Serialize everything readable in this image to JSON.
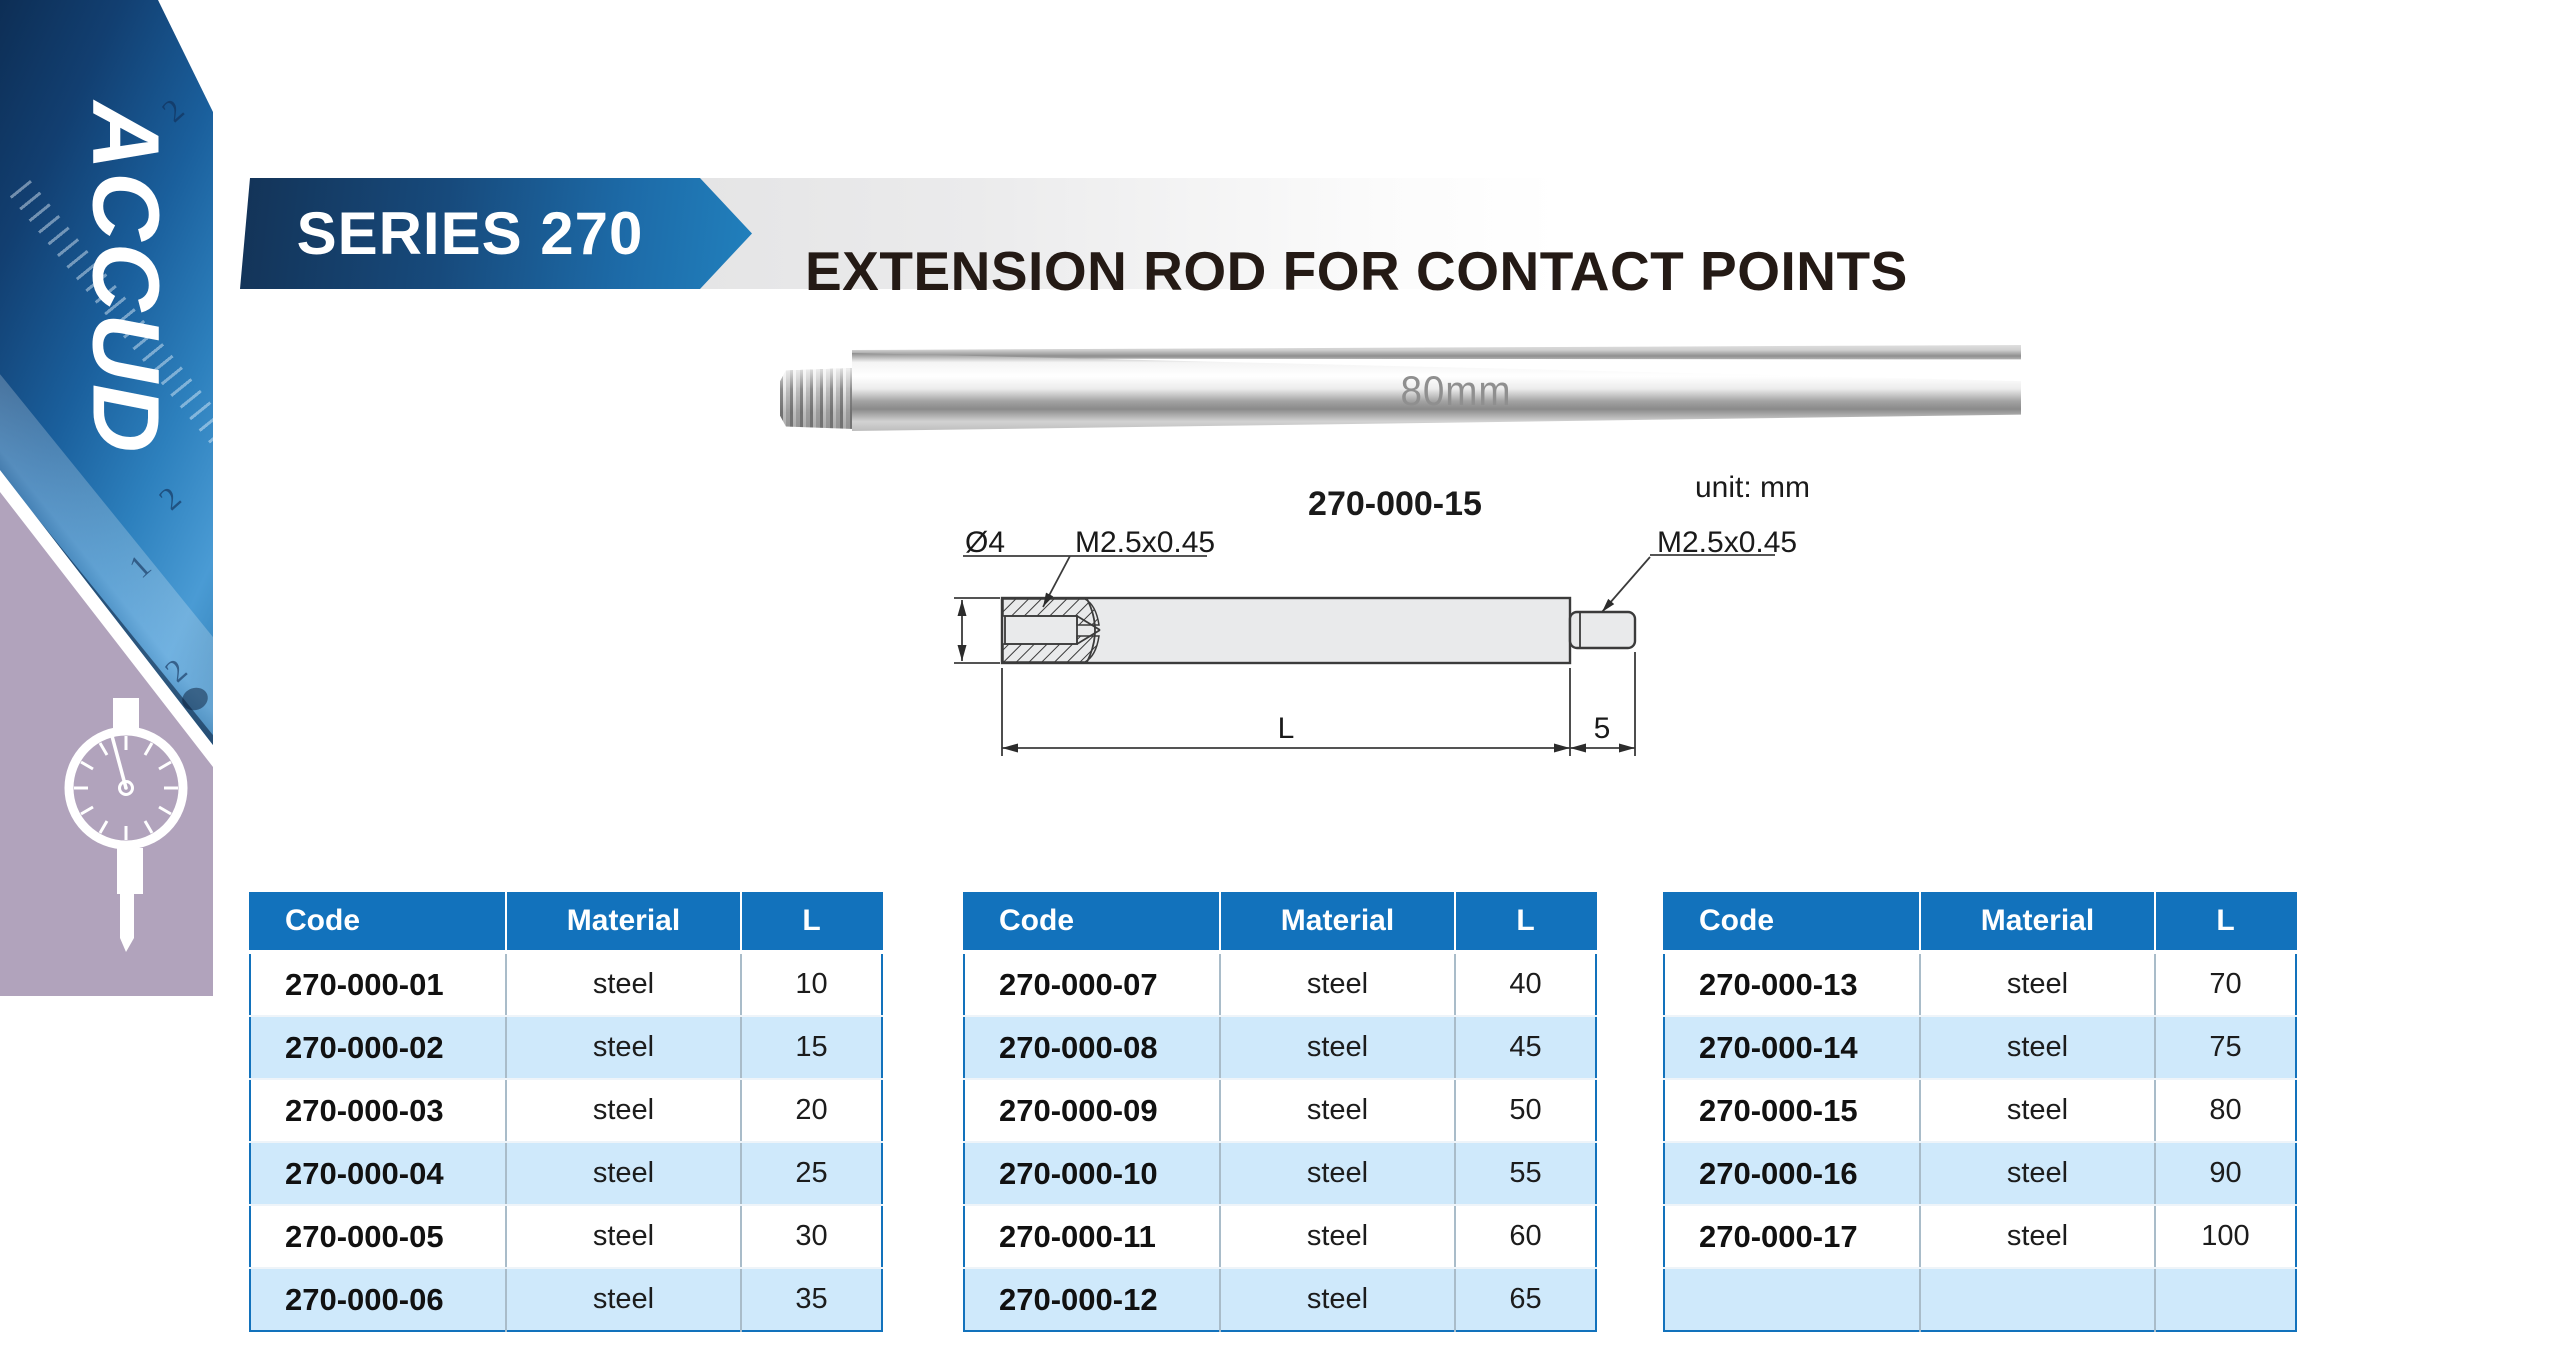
{
  "brand": {
    "logo_text": "ACCUD"
  },
  "sidebar": {
    "numerals": [
      "2",
      "2",
      "1",
      "2"
    ]
  },
  "banner": {
    "series_label": "SERIES 270",
    "title": "EXTENSION ROD FOR CONTACT POINTS"
  },
  "photo": {
    "engraving": "80mm"
  },
  "drawing": {
    "part_label": "270-000-15",
    "unit_label": "unit: mm",
    "diameter_label": "Ø4",
    "thread_label_left": "M2.5x0.45",
    "thread_label_right": "M2.5x0.45",
    "length_label": "L",
    "tip_length_label": "5"
  },
  "tables": [
    {
      "headers": [
        "Code",
        "Material",
        "L"
      ],
      "rows": [
        [
          "270-000-01",
          "steel",
          "10"
        ],
        [
          "270-000-02",
          "steel",
          "15"
        ],
        [
          "270-000-03",
          "steel",
          "20"
        ],
        [
          "270-000-04",
          "steel",
          "25"
        ],
        [
          "270-000-05",
          "steel",
          "30"
        ],
        [
          "270-000-06",
          "steel",
          "35"
        ]
      ]
    },
    {
      "headers": [
        "Code",
        "Material",
        "L"
      ],
      "rows": [
        [
          "270-000-07",
          "steel",
          "40"
        ],
        [
          "270-000-08",
          "steel",
          "45"
        ],
        [
          "270-000-09",
          "steel",
          "50"
        ],
        [
          "270-000-10",
          "steel",
          "55"
        ],
        [
          "270-000-11",
          "steel",
          "60"
        ],
        [
          "270-000-12",
          "steel",
          "65"
        ]
      ]
    },
    {
      "headers": [
        "Code",
        "Material",
        "L"
      ],
      "rows": [
        [
          "270-000-13",
          "steel",
          "70"
        ],
        [
          "270-000-14",
          "steel",
          "75"
        ],
        [
          "270-000-15",
          "steel",
          "80"
        ],
        [
          "270-000-16",
          "steel",
          "90"
        ],
        [
          "270-000-17",
          "steel",
          "100"
        ],
        [
          "",
          "",
          ""
        ]
      ]
    }
  ],
  "colors": {
    "banner_navy": "#133357",
    "banner_blue": "#2180bd",
    "table_header_blue": "#1272bc",
    "row_alt_blue": "#cfe9fb",
    "sidebar_purple": "#b1a3bc",
    "title_text": "#241a15"
  }
}
